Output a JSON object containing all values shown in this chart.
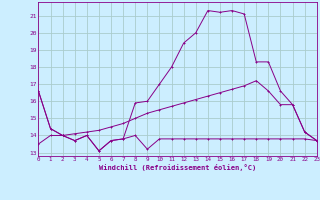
{
  "title": "",
  "xlabel": "Windchill (Refroidissement éolien,°C)",
  "bg_color": "#cceeff",
  "grid_color": "#aacccc",
  "line_color": "#880088",
  "xlim": [
    0,
    23
  ],
  "ylim": [
    12.8,
    21.8
  ],
  "xticks": [
    0,
    1,
    2,
    3,
    4,
    5,
    6,
    7,
    8,
    9,
    10,
    11,
    12,
    13,
    14,
    15,
    16,
    17,
    18,
    19,
    20,
    21,
    22,
    23
  ],
  "yticks": [
    13,
    14,
    15,
    16,
    17,
    18,
    19,
    20,
    21
  ],
  "line1_x": [
    0,
    1,
    2,
    3,
    4,
    5,
    6,
    7,
    8,
    9,
    10,
    11,
    12,
    13,
    14,
    15,
    16,
    17,
    18,
    19,
    20,
    21,
    22,
    23
  ],
  "line1_y": [
    16.6,
    14.4,
    14.0,
    13.7,
    14.0,
    13.1,
    13.7,
    13.8,
    14.0,
    13.2,
    13.8,
    13.8,
    13.8,
    13.8,
    13.8,
    13.8,
    13.8,
    13.8,
    13.8,
    13.8,
    13.8,
    13.8,
    13.8,
    13.7
  ],
  "line2_x": [
    0,
    1,
    2,
    3,
    4,
    5,
    6,
    7,
    8,
    9,
    10,
    11,
    12,
    13,
    14,
    15,
    16,
    17,
    18,
    19,
    20,
    21,
    22,
    23
  ],
  "line2_y": [
    13.5,
    14.0,
    14.0,
    14.1,
    14.2,
    14.3,
    14.5,
    14.7,
    15.0,
    15.3,
    15.5,
    15.7,
    15.9,
    16.1,
    16.3,
    16.5,
    16.7,
    16.9,
    17.2,
    16.6,
    15.8,
    15.8,
    14.2,
    13.7
  ],
  "line3_x": [
    0,
    1,
    2,
    3,
    4,
    5,
    6,
    7,
    8,
    9,
    10,
    11,
    12,
    13,
    14,
    15,
    16,
    17,
    18,
    19,
    20,
    21,
    22,
    23
  ],
  "line3_y": [
    16.6,
    14.4,
    14.0,
    13.7,
    14.0,
    13.1,
    13.7,
    13.8,
    15.9,
    16.0,
    17.0,
    18.0,
    19.4,
    20.0,
    21.3,
    21.2,
    21.3,
    21.1,
    18.3,
    18.3,
    16.6,
    15.8,
    14.2,
    13.7
  ]
}
